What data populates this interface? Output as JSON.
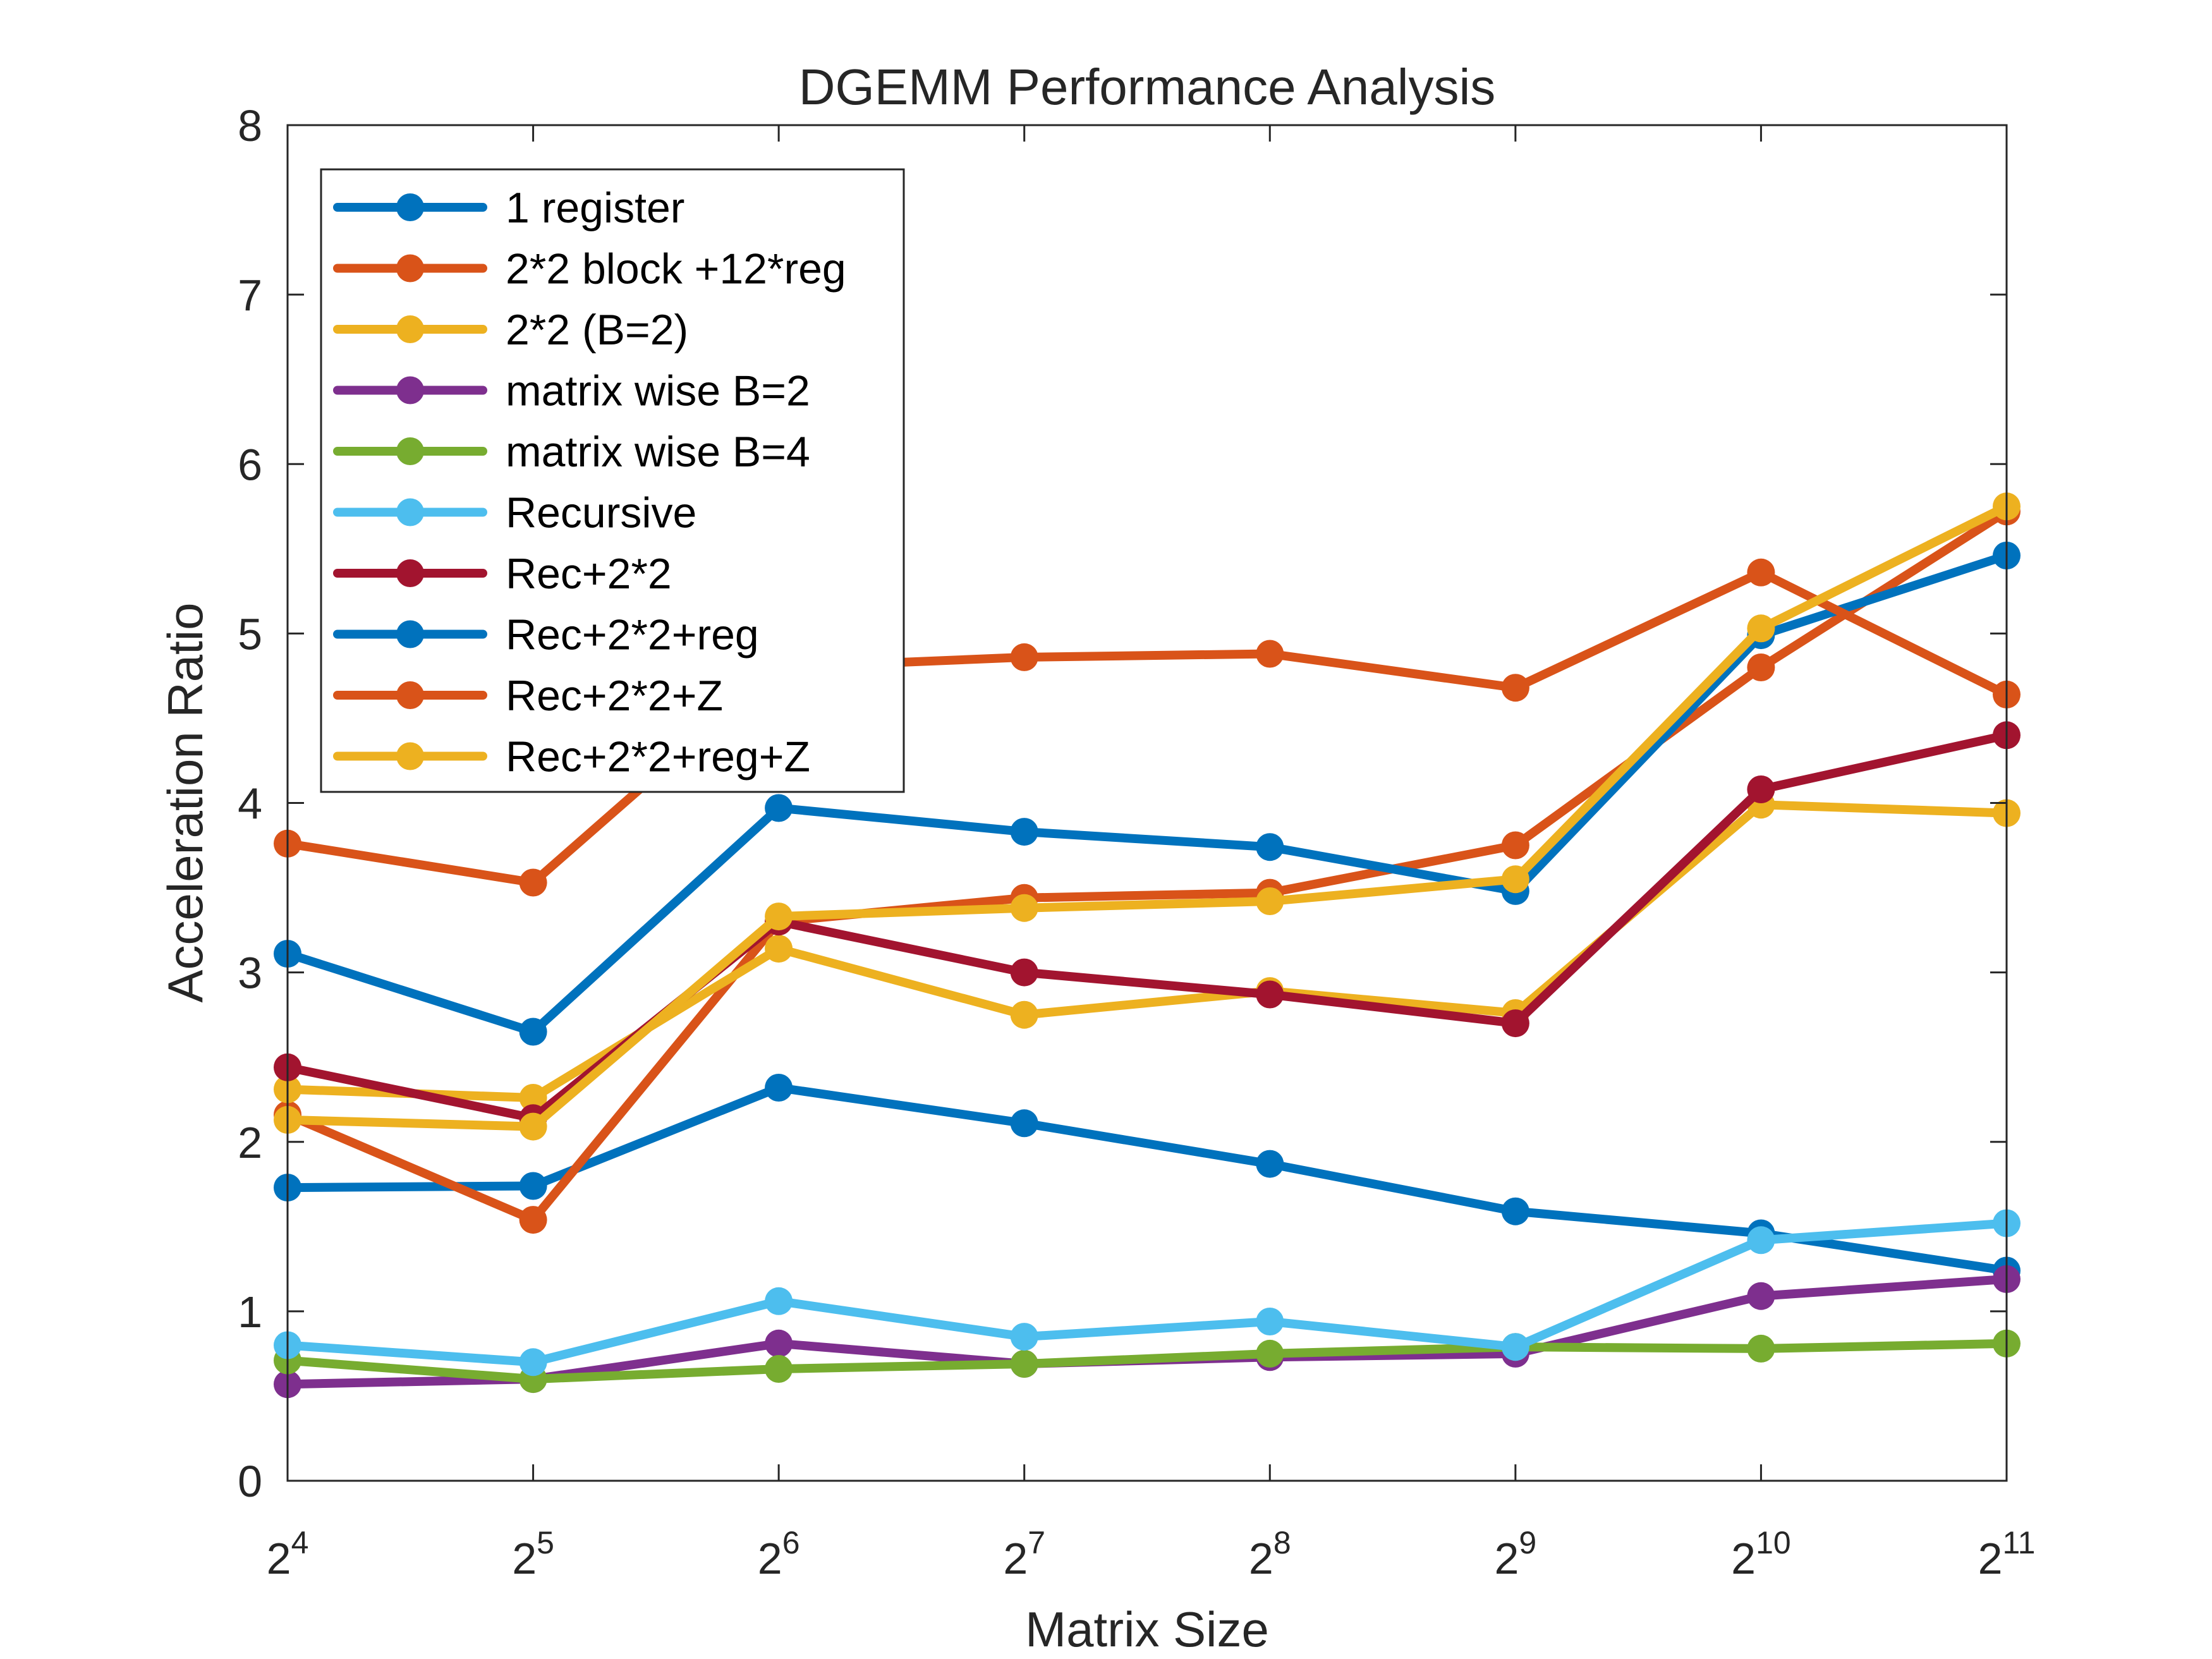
{
  "chart_data": {
    "type": "line",
    "title": "DGEMM Performance Analysis",
    "xlabel": "Matrix Size",
    "ylabel": "Acceleration Ratio",
    "x": [
      4,
      5,
      6,
      7,
      8,
      9,
      10,
      11
    ],
    "x_tick_base": "2",
    "x_tick_exponents": [
      "4",
      "5",
      "6",
      "7",
      "8",
      "9",
      "10",
      "11"
    ],
    "y_ticks": [
      "0",
      "1",
      "2",
      "3",
      "4",
      "5",
      "6",
      "7",
      "8"
    ],
    "ylim": [
      0,
      8
    ],
    "xlim": [
      4,
      11
    ],
    "grid": false,
    "legend_position": "top-left",
    "series": [
      {
        "name": "1 register",
        "color": "#0072BD",
        "values": [
          1.73,
          1.74,
          2.32,
          2.11,
          1.87,
          1.59,
          1.46,
          1.24
        ]
      },
      {
        "name": "2*2 block +12*reg",
        "color": "#D95319",
        "values": [
          2.16,
          1.54,
          3.3,
          3.44,
          3.47,
          3.75,
          4.8,
          5.72
        ]
      },
      {
        "name": "2*2 (B=2)",
        "color": "#EDB120",
        "values": [
          2.31,
          2.26,
          3.14,
          2.75,
          2.89,
          2.76,
          3.99,
          3.94
        ]
      },
      {
        "name": "matrix wise B=2",
        "color": "#7E2F8E",
        "values": [
          0.57,
          0.6,
          0.81,
          0.69,
          0.73,
          0.75,
          1.09,
          1.19
        ]
      },
      {
        "name": "matrix wise B=4",
        "color": "#77AC30",
        "values": [
          0.71,
          0.6,
          0.66,
          0.69,
          0.75,
          0.79,
          0.78,
          0.81
        ]
      },
      {
        "name": "Recursive",
        "color": "#4DBEEE",
        "values": [
          0.8,
          0.7,
          1.06,
          0.85,
          0.94,
          0.79,
          1.42,
          1.52
        ]
      },
      {
        "name": "Rec+2*2",
        "color": "#A2142F",
        "values": [
          2.44,
          2.14,
          3.3,
          3.0,
          2.87,
          2.7,
          4.08,
          4.4
        ]
      },
      {
        "name": "Rec+2*2+reg",
        "color": "#0072BD",
        "values": [
          3.11,
          2.65,
          3.97,
          3.83,
          3.74,
          3.48,
          4.99,
          5.46
        ]
      },
      {
        "name": "Rec+2*2+Z",
        "color": "#D95319",
        "values": [
          3.76,
          3.53,
          4.8,
          4.86,
          4.88,
          4.68,
          5.36,
          4.64
        ]
      },
      {
        "name": "Rec+2*2+reg+Z",
        "color": "#EDB120",
        "values": [
          2.13,
          2.09,
          3.33,
          3.38,
          3.42,
          3.55,
          5.03,
          5.75
        ]
      }
    ]
  }
}
